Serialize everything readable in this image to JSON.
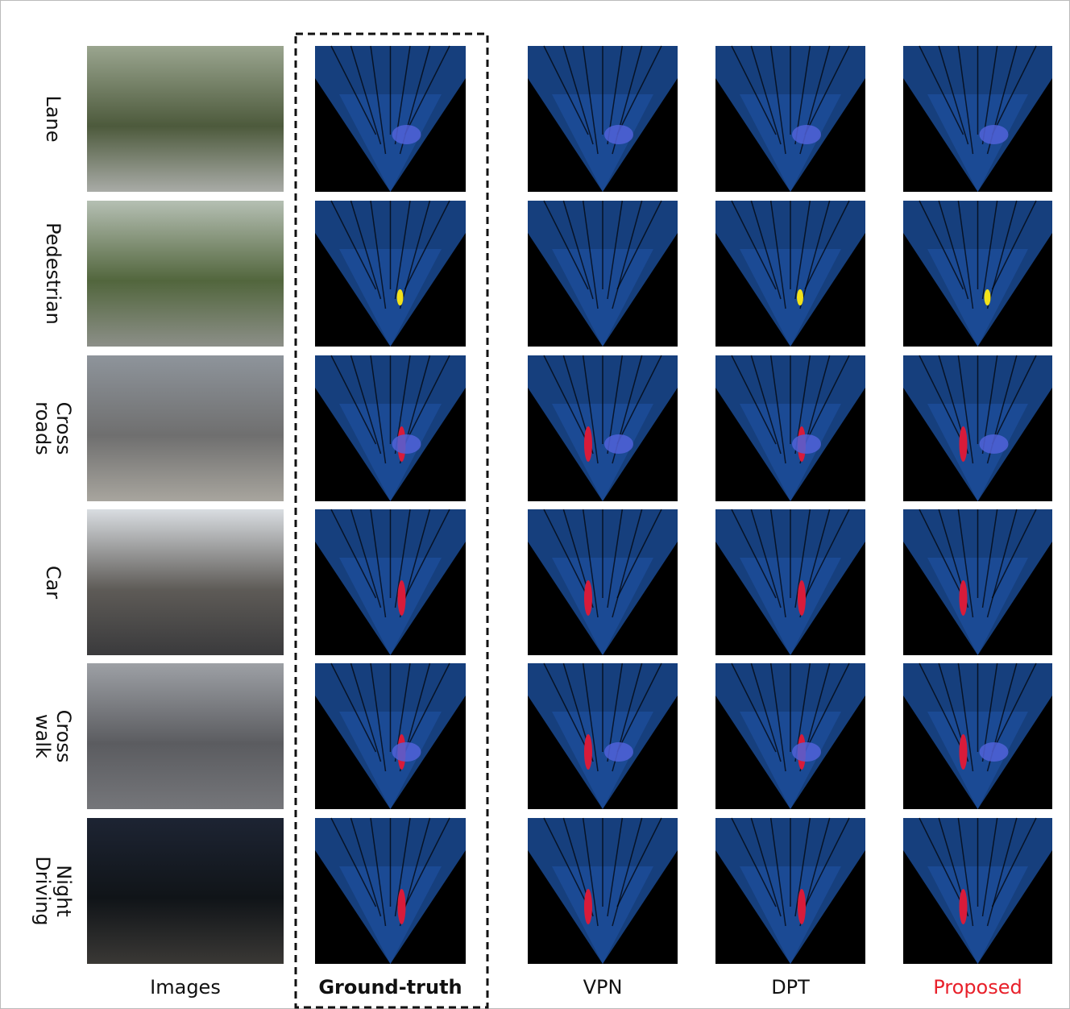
{
  "rows": [
    {
      "label": [
        "Lane"
      ]
    },
    {
      "label": [
        "Pedestrian"
      ]
    },
    {
      "label": [
        "Cross",
        "roads"
      ]
    },
    {
      "label": [
        "Car"
      ]
    },
    {
      "label": [
        "Cross",
        "walk"
      ]
    },
    {
      "label": [
        "Night",
        "Driving"
      ]
    }
  ],
  "columns": [
    "Images",
    "Ground-truth",
    "VPN",
    "DPT",
    "Proposed"
  ]
}
